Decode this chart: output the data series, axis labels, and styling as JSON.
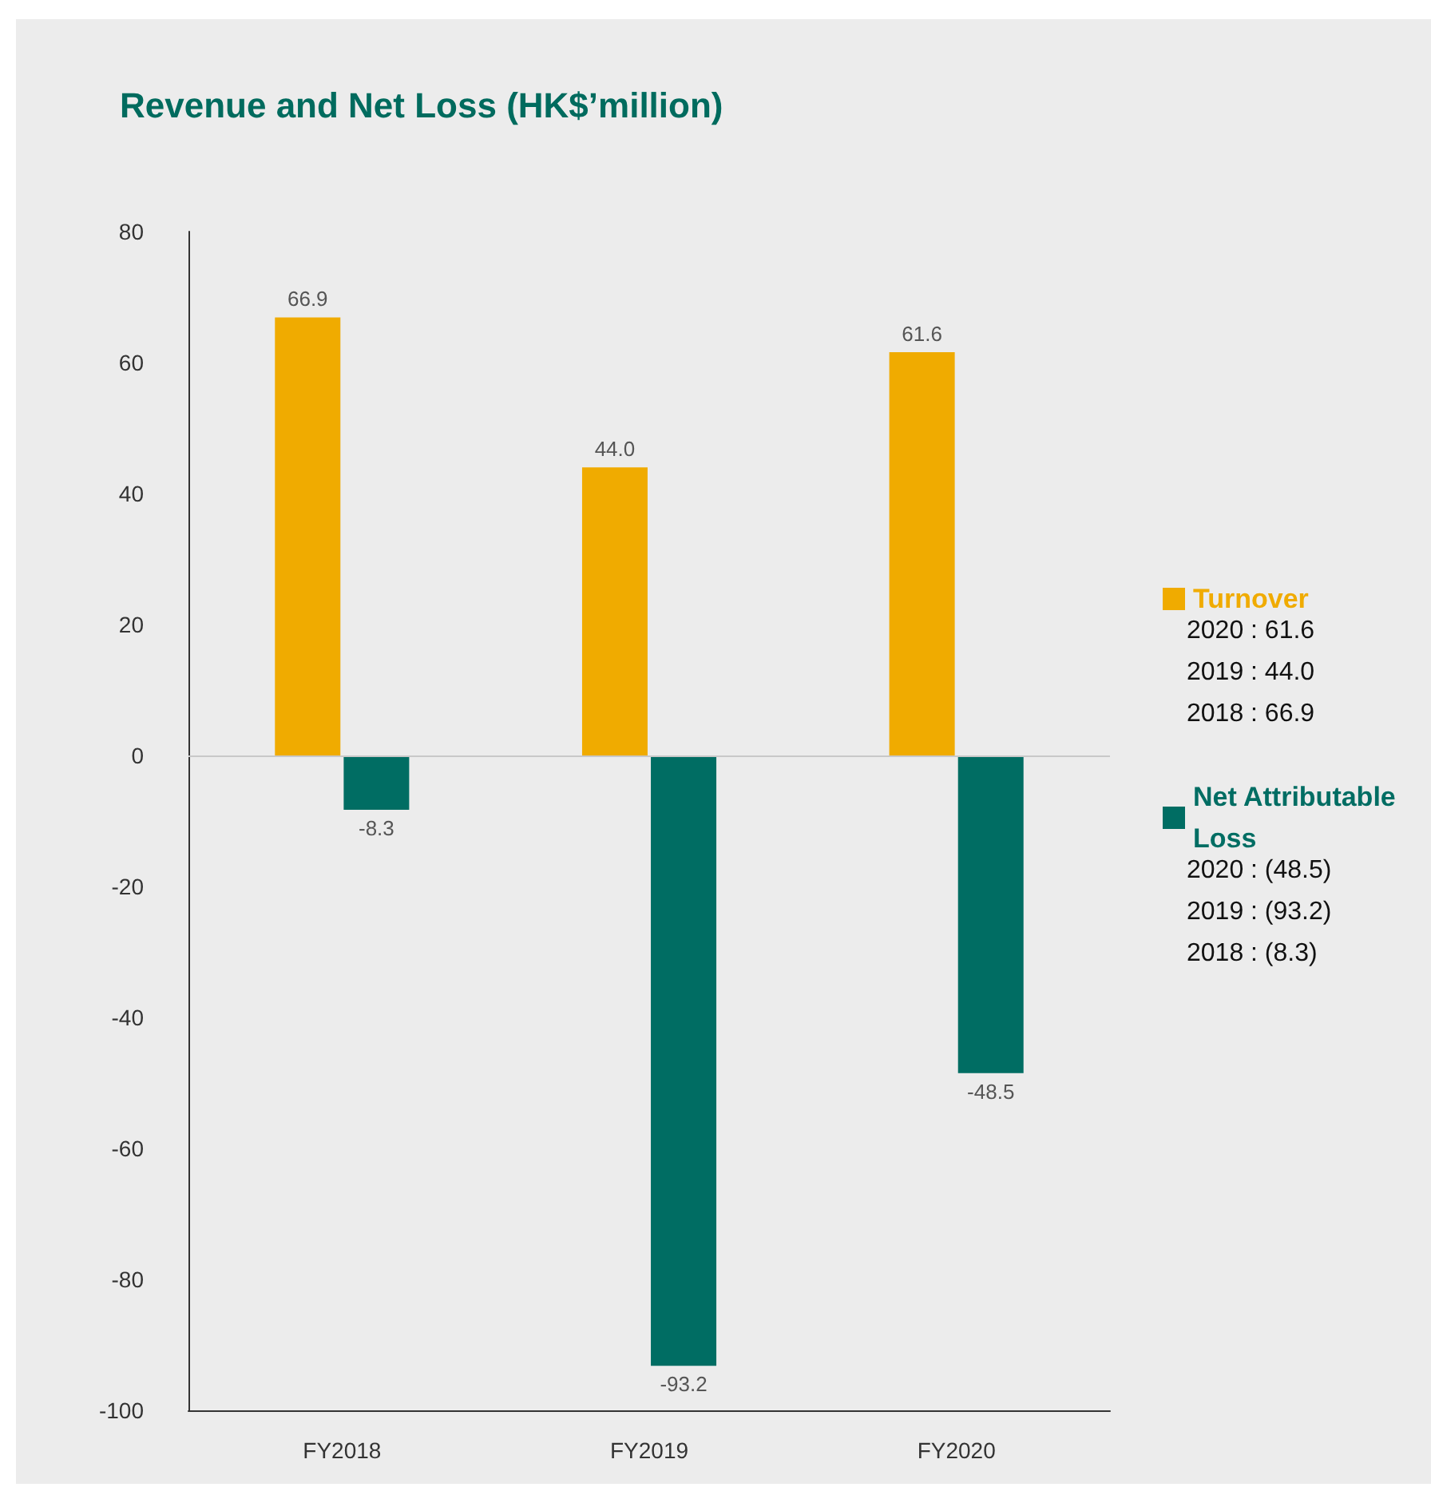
{
  "chart_data": {
    "type": "bar",
    "title": "Revenue and Net Loss (HK$’million)",
    "categories": [
      "FY2018",
      "FY2019",
      "FY2020"
    ],
    "series": [
      {
        "name": "Turnover",
        "color": "#f0ab00",
        "values": [
          66.9,
          44.0,
          61.6
        ],
        "value_labels": [
          "66.9",
          "44.0",
          "61.6"
        ]
      },
      {
        "name": "Net Attributable Loss",
        "color": "#006d63",
        "values": [
          -8.3,
          -93.2,
          -48.5
        ],
        "value_labels": [
          "-8.3",
          "-93.2",
          "-48.5"
        ]
      }
    ],
    "ylim": [
      -100,
      80
    ],
    "yticks": [
      -100,
      -80,
      -60,
      -40,
      -20,
      0,
      20,
      40,
      60,
      80
    ],
    "ref_lines": [
      {
        "axis": "y",
        "value": 0,
        "color": "#c8c8c8"
      }
    ],
    "annotations": [
      "2020 : 61.6",
      "2019 : 44.0",
      "2018 : 66.9",
      "2020 : (48.5)",
      "2019 : (93.2)",
      "2018 : (8.3)"
    ],
    "legend": "right",
    "grid": false
  }
}
